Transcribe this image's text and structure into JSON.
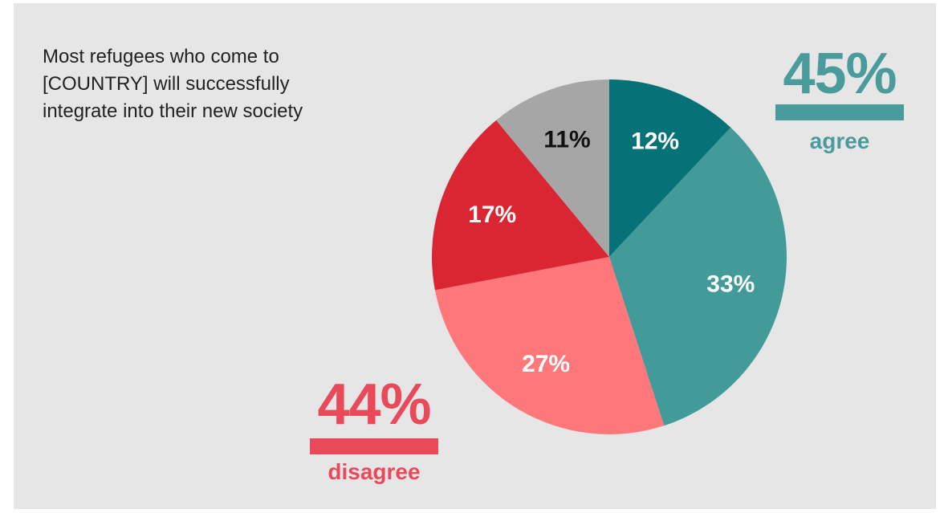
{
  "question": "Most refugees who come to [COUNTRY] will successfully integrate into their new society",
  "summary": {
    "agree": {
      "percent": "45%",
      "label": "agree",
      "color": "#4a9b9b"
    },
    "disagree": {
      "percent": "44%",
      "label": "disagree",
      "color": "#e84a5a"
    }
  },
  "chart_data": {
    "type": "pie",
    "title": "Most refugees who come to [COUNTRY] will successfully integrate into their new society",
    "start_angle_deg": 0,
    "direction": "clockwise",
    "slices": [
      {
        "value": 12,
        "label": "12%",
        "color": "#067278",
        "label_color": "#ffffff"
      },
      {
        "value": 33,
        "label": "33%",
        "color": "#429a99",
        "label_color": "#ffffff"
      },
      {
        "value": 27,
        "label": "27%",
        "color": "#fe787b",
        "label_color": "#ffffff"
      },
      {
        "value": 17,
        "label": "17%",
        "color": "#da2532",
        "label_color": "#ffffff"
      },
      {
        "value": 11,
        "label": "11%",
        "color": "#a6a6a6",
        "label_color": "#111111"
      }
    ]
  }
}
